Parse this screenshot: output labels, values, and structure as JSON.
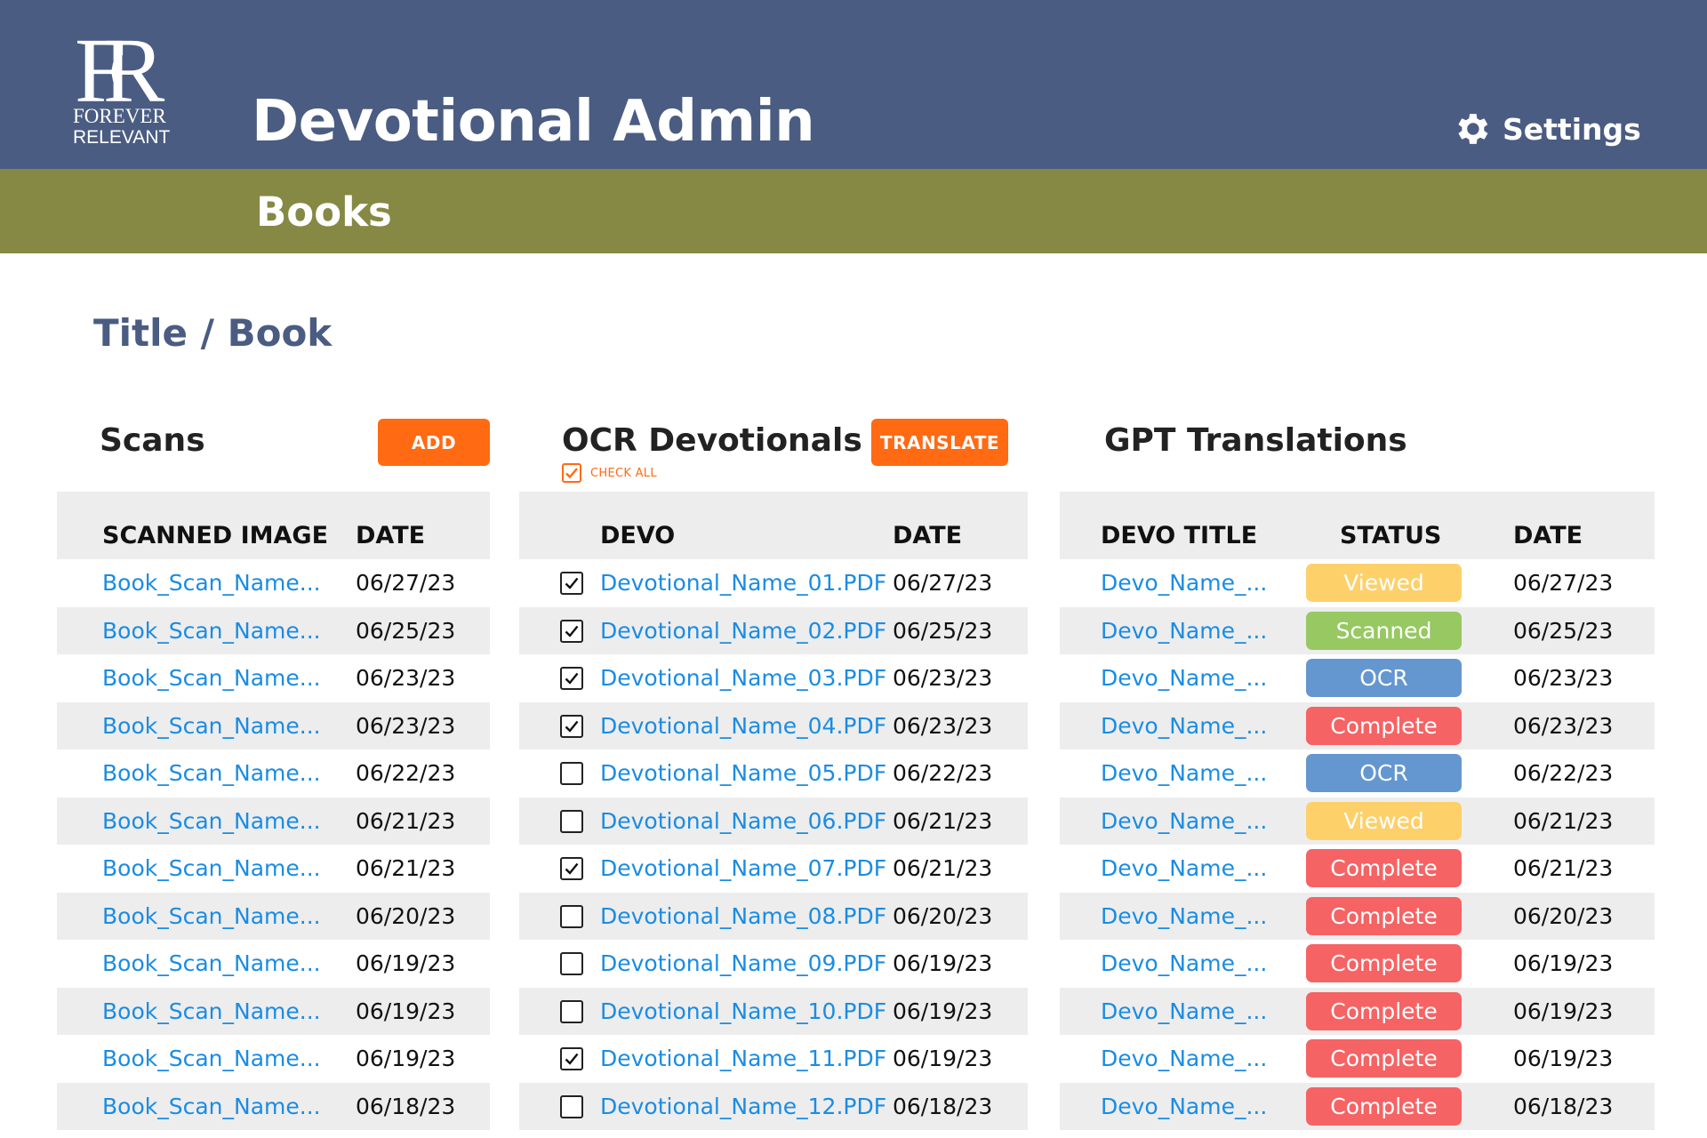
{
  "header": {
    "logo_line1": "FOREVER",
    "logo_line2": "RELEVANT",
    "logo_monogram": "FR",
    "title": "Devotional Admin",
    "settings_label": "Settings",
    "background": "#4a5c82"
  },
  "subbar": {
    "title": "Books",
    "background": "#868944"
  },
  "page_title": "Title / Book",
  "scans": {
    "title": "Scans",
    "add_label": "ADD",
    "columns": [
      "SCANNED IMAGE",
      "DATE"
    ],
    "rows": [
      {
        "name": "Book_Scan_Name...",
        "date": "06/27/23"
      },
      {
        "name": "Book_Scan_Name...",
        "date": "06/25/23"
      },
      {
        "name": "Book_Scan_Name...",
        "date": "06/23/23"
      },
      {
        "name": "Book_Scan_Name...",
        "date": "06/23/23"
      },
      {
        "name": "Book_Scan_Name...",
        "date": "06/22/23"
      },
      {
        "name": "Book_Scan_Name...",
        "date": "06/21/23"
      },
      {
        "name": "Book_Scan_Name...",
        "date": "06/21/23"
      },
      {
        "name": "Book_Scan_Name...",
        "date": "06/20/23"
      },
      {
        "name": "Book_Scan_Name...",
        "date": "06/19/23"
      },
      {
        "name": "Book_Scan_Name...",
        "date": "06/19/23"
      },
      {
        "name": "Book_Scan_Name...",
        "date": "06/19/23"
      },
      {
        "name": "Book_Scan_Name...",
        "date": "06/18/23"
      }
    ]
  },
  "ocr": {
    "title": "OCR Devotionals",
    "translate_label": "TRANSLATE",
    "check_all_label": "CHECK ALL",
    "check_all_checked": true,
    "columns": [
      "DEVO",
      "DATE"
    ],
    "rows": [
      {
        "name": "Devotional_Name_01.PDF",
        "date": "06/27/23",
        "checked": true
      },
      {
        "name": "Devotional_Name_02.PDF",
        "date": "06/25/23",
        "checked": true
      },
      {
        "name": "Devotional_Name_03.PDF",
        "date": "06/23/23",
        "checked": true
      },
      {
        "name": "Devotional_Name_04.PDF",
        "date": "06/23/23",
        "checked": true
      },
      {
        "name": "Devotional_Name_05.PDF",
        "date": "06/22/23",
        "checked": false
      },
      {
        "name": "Devotional_Name_06.PDF",
        "date": "06/21/23",
        "checked": false
      },
      {
        "name": "Devotional_Name_07.PDF",
        "date": "06/21/23",
        "checked": true
      },
      {
        "name": "Devotional_Name_08.PDF",
        "date": "06/20/23",
        "checked": false
      },
      {
        "name": "Devotional_Name_09.PDF",
        "date": "06/19/23",
        "checked": false
      },
      {
        "name": "Devotional_Name_10.PDF",
        "date": "06/19/23",
        "checked": false
      },
      {
        "name": "Devotional_Name_11.PDF",
        "date": "06/19/23",
        "checked": true
      },
      {
        "name": "Devotional_Name_12.PDF",
        "date": "06/18/23",
        "checked": false
      }
    ]
  },
  "gpt": {
    "title": "GPT Translations",
    "columns": [
      "DEVO TITLE",
      "STATUS",
      "DATE"
    ],
    "status_colors": {
      "Viewed": "#fdd06a",
      "Scanned": "#97c862",
      "OCR": "#6497cf",
      "Complete": "#f66364"
    },
    "rows": [
      {
        "name": "Devo_Name_...",
        "status": "Viewed",
        "date": "06/27/23"
      },
      {
        "name": "Devo_Name_...",
        "status": "Scanned",
        "date": "06/25/23"
      },
      {
        "name": "Devo_Name_...",
        "status": "OCR",
        "date": "06/23/23"
      },
      {
        "name": "Devo_Name_...",
        "status": "Complete",
        "date": "06/23/23"
      },
      {
        "name": "Devo_Name_...",
        "status": "OCR",
        "date": "06/22/23"
      },
      {
        "name": "Devo_Name_...",
        "status": "Viewed",
        "date": "06/21/23"
      },
      {
        "name": "Devo_Name_...",
        "status": "Complete",
        "date": "06/21/23"
      },
      {
        "name": "Devo_Name_...",
        "status": "Complete",
        "date": "06/20/23"
      },
      {
        "name": "Devo_Name_...",
        "status": "Complete",
        "date": "06/19/23"
      },
      {
        "name": "Devo_Name_...",
        "status": "Complete",
        "date": "06/19/23"
      },
      {
        "name": "Devo_Name_...",
        "status": "Complete",
        "date": "06/19/23"
      },
      {
        "name": "Devo_Name_...",
        "status": "Complete",
        "date": "06/18/23"
      }
    ]
  },
  "icons": {
    "settings": "gear-icon",
    "check": "checkmark-icon",
    "logo": "forever-relevant-logo"
  }
}
